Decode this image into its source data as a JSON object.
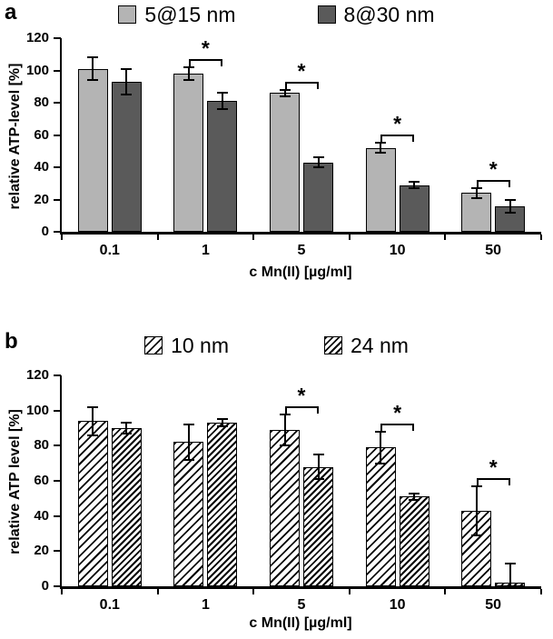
{
  "figure": {
    "background": "#ffffff"
  },
  "colors": {
    "axis": "#000000",
    "bar_light_gray": "#b4b4b4",
    "bar_dark_gray": "#5a5a5a",
    "hatch_stroke": "#000000"
  },
  "chart_data": [
    {
      "type": "bar",
      "panel": "a",
      "title": "",
      "xlabel": "c Mn(II) [µg/ml]",
      "ylabel": "relative ATP-level [%]",
      "ylim": [
        0,
        120
      ],
      "yticks": [
        0,
        20,
        40,
        60,
        80,
        100,
        120
      ],
      "grid": false,
      "legend_position": "top",
      "categories": [
        "0.1",
        "1",
        "5",
        "10",
        "50"
      ],
      "series": [
        {
          "name": "5@15 nm",
          "style": "solid-light",
          "color": "#b4b4b4",
          "values": [
            101,
            98,
            86,
            52,
            24
          ],
          "errors": [
            7,
            4,
            2,
            3,
            3
          ]
        },
        {
          "name": "8@30 nm",
          "style": "solid-dark",
          "color": "#5a5a5a",
          "values": [
            93,
            81,
            43,
            29,
            16
          ],
          "errors": [
            8,
            5,
            3,
            2,
            4
          ]
        }
      ],
      "significance": [
        false,
        true,
        true,
        true,
        true
      ],
      "sig_symbol": "*"
    },
    {
      "type": "bar",
      "panel": "b",
      "title": "",
      "xlabel": "c Mn(II) [µg/ml]",
      "ylabel": "relative ATP level [%]",
      "ylim": [
        0,
        120
      ],
      "yticks": [
        0,
        20,
        40,
        60,
        80,
        100,
        120
      ],
      "grid": false,
      "legend_position": "top",
      "categories": [
        "0.1",
        "1",
        "5",
        "10",
        "50"
      ],
      "series": [
        {
          "name": "10 nm",
          "style": "hatch-wide",
          "pattern": "diagonal-stripes-wide",
          "values": [
            94,
            82,
            89,
            79,
            43
          ],
          "errors": [
            8,
            10,
            9,
            9,
            14
          ]
        },
        {
          "name": "24 nm",
          "style": "hatch-dense",
          "pattern": "diagonal-stripes-dense",
          "values": [
            90,
            93,
            68,
            51,
            2
          ],
          "errors": [
            3,
            2,
            7,
            2,
            11
          ]
        }
      ],
      "significance": [
        false,
        false,
        true,
        true,
        true
      ],
      "sig_symbol": "*"
    }
  ]
}
